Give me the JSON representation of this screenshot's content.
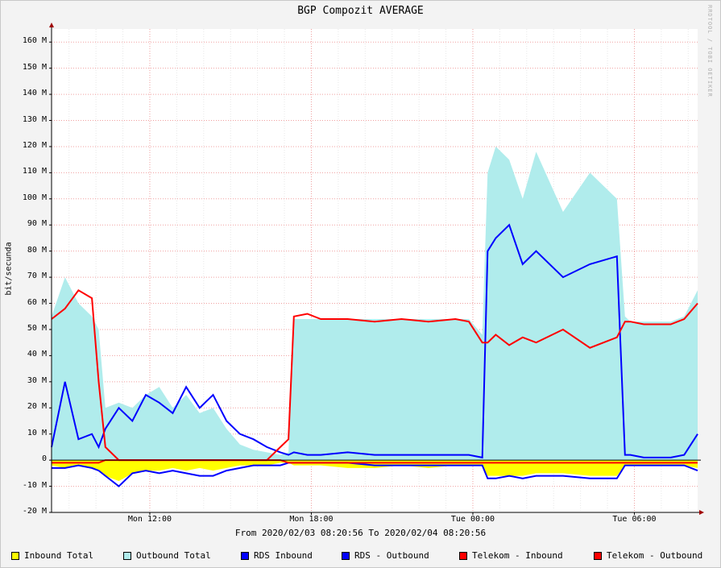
{
  "chart_data": {
    "type": "area",
    "title": "BGP Compozit AVERAGE",
    "ylabel": "bit/secunda",
    "xlabel": "From 2020/02/03 08:20:56 To 2020/02/04 08:20:56",
    "watermark": "RRDTOOL / TOBI OETIKER",
    "y_unit": "M",
    "ylim": [
      -20,
      165
    ],
    "y_ticks": [
      "160 M",
      "150 M",
      "140 M",
      "130 M",
      "120 M",
      "110 M",
      "100 M",
      "90 M",
      "80 M",
      "70 M",
      "60 M",
      "50 M",
      "40 M",
      "30 M",
      "20 M",
      "10 M",
      "0",
      "-10 M",
      "-20 M"
    ],
    "y_tick_values": [
      160,
      150,
      140,
      130,
      120,
      110,
      100,
      90,
      80,
      70,
      60,
      50,
      40,
      30,
      20,
      10,
      0,
      -10,
      -20
    ],
    "x_ticks": [
      "Mon 12:00",
      "Mon 18:00",
      "Tue 00:00",
      "Tue 06:00"
    ],
    "x_tick_hours": [
      3.65,
      9.65,
      15.65,
      21.65
    ],
    "x_range_hours": [
      0,
      24
    ],
    "grid": true,
    "legend_position": "bottom",
    "x_hours": [
      0,
      0.5,
      1,
      1.5,
      1.75,
      2,
      2.5,
      3,
      3.5,
      4,
      4.5,
      5,
      5.5,
      6,
      6.5,
      7,
      7.5,
      8,
      8.5,
      8.8,
      9,
      9.5,
      10,
      11,
      12,
      13,
      14,
      15,
      15.5,
      16,
      16.2,
      16.5,
      17,
      17.5,
      18,
      19,
      20,
      21,
      21.3,
      21.5,
      22,
      23,
      23.5,
      24
    ],
    "series": [
      {
        "name": "Inbound Total",
        "color": "#ffff00",
        "values": [
          -2,
          -3,
          -2,
          -3,
          -4,
          -6,
          -8,
          -5,
          -4,
          -4,
          -3,
          -4,
          -3,
          -4,
          -3,
          -2,
          -2,
          -2,
          -1,
          -1,
          -2,
          -2,
          -2,
          -3,
          -3,
          -2,
          -3,
          -2,
          -2,
          -2,
          -6,
          -6,
          -6,
          -6,
          -5,
          -5,
          -6,
          -6,
          -2,
          -2,
          -2,
          -2,
          -2,
          -3
        ]
      },
      {
        "name": "Outbound Total",
        "color": "#b0ecec",
        "values": [
          55,
          70,
          60,
          55,
          50,
          20,
          22,
          20,
          25,
          28,
          20,
          25,
          18,
          20,
          12,
          6,
          4,
          3,
          2,
          3,
          54,
          54,
          54,
          54,
          54,
          54,
          54,
          54,
          54,
          48,
          110,
          120,
          115,
          100,
          118,
          95,
          110,
          100,
          55,
          53,
          53,
          53,
          55,
          65
        ]
      },
      {
        "name": "RDS Inbound",
        "color": "#0000ff",
        "values": [
          5,
          30,
          8,
          10,
          5,
          12,
          20,
          15,
          25,
          22,
          18,
          28,
          20,
          25,
          15,
          10,
          8,
          5,
          3,
          2,
          3,
          2,
          2,
          3,
          2,
          2,
          2,
          2,
          2,
          1,
          80,
          85,
          90,
          75,
          80,
          70,
          75,
          78,
          2,
          2,
          1,
          1,
          2,
          10
        ]
      },
      {
        "name": "RDS - Outbound",
        "color": "#0000ff",
        "values": [
          -3,
          -3,
          -2,
          -3,
          -4,
          -6,
          -10,
          -5,
          -4,
          -5,
          -4,
          -5,
          -6,
          -6,
          -4,
          -3,
          -2,
          -2,
          -2,
          -1,
          -1,
          -1,
          -1,
          -1,
          -2,
          -2,
          -2,
          -2,
          -2,
          -2,
          -7,
          -7,
          -6,
          -7,
          -6,
          -6,
          -7,
          -7,
          -2,
          -2,
          -2,
          -2,
          -2,
          -4
        ]
      },
      {
        "name": "Telekom - Inbound",
        "color": "#ff0000",
        "values": [
          54,
          58,
          65,
          62,
          30,
          5,
          0,
          0,
          0,
          0,
          0,
          0,
          0,
          0,
          0,
          0,
          0,
          0,
          5,
          8,
          55,
          56,
          54,
          54,
          53,
          54,
          53,
          54,
          53,
          45,
          45,
          48,
          44,
          47,
          45,
          50,
          43,
          47,
          53,
          53,
          52,
          52,
          54,
          60
        ]
      },
      {
        "name": "Telekom - Outbound",
        "color": "#ff0000",
        "values": [
          -1,
          -1,
          -1,
          -1,
          -1,
          0,
          0,
          0,
          0,
          0,
          0,
          0,
          0,
          0,
          0,
          0,
          0,
          0,
          0,
          -1,
          -1,
          -1,
          -1,
          -1,
          -1,
          -1,
          -1,
          -1,
          -1,
          -1,
          -1,
          -1,
          -1,
          -1,
          -1,
          -1,
          -1,
          -1,
          -1,
          -1,
          -1,
          -1,
          -1,
          -1
        ]
      }
    ]
  }
}
